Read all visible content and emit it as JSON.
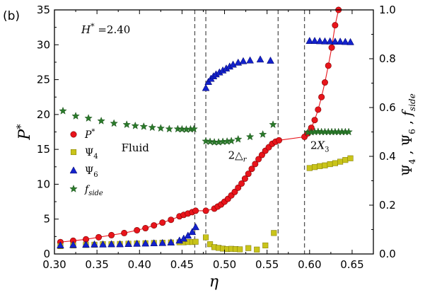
{
  "chart_data": {
    "type": "scatter",
    "panel_label": "(b)",
    "annotation": "H* =2.40",
    "xlabel": "η",
    "ylabel_left": "P*",
    "ylabel_right": "Ψ4 , Ψ6 , f_side",
    "xlim": [
      0.3,
      0.675
    ],
    "ylim_left": [
      0,
      35
    ],
    "ylim_right": [
      0,
      1.0
    ],
    "x_ticks": [
      "0.30",
      "0.35",
      "0.40",
      "0.45",
      "0.50",
      "0.55",
      "0.60",
      "0.65"
    ],
    "y_left_ticks": [
      "0",
      "5",
      "10",
      "15",
      "20",
      "25",
      "30",
      "35"
    ],
    "y_right_ticks": [
      "0.0",
      "0.2",
      "0.4",
      "0.6",
      "0.8",
      "1.0"
    ],
    "phase_boundaries": [
      0.465,
      0.478,
      0.563,
      0.594
    ],
    "region_labels": [
      {
        "text": "Fluid",
        "x": 0.395,
        "y_right": 0.42
      },
      {
        "text": "2△r",
        "x": 0.515,
        "y_right": 0.39
      },
      {
        "text": "2X3",
        "x": 0.612,
        "y_right": 0.43
      }
    ],
    "legend": [
      "P*",
      "Ψ4",
      "Ψ6",
      "f_side"
    ],
    "colors": {
      "P*": "#e8141b",
      "Ψ4": "#c9c41a",
      "Ψ6": "#1322cc",
      "f_side": "#2a7a2a",
      "line": "#e8141b",
      "boundary": "#555555"
    },
    "series": [
      {
        "name": "P*",
        "axis": "left",
        "marker": "circle",
        "x": [
          0.307,
          0.322,
          0.337,
          0.352,
          0.367,
          0.382,
          0.397,
          0.407,
          0.417,
          0.427,
          0.437,
          0.447,
          0.452,
          0.457,
          0.462,
          0.466,
          0.478,
          0.488,
          0.492,
          0.496,
          0.5,
          0.504,
          0.508,
          0.512,
          0.516,
          0.52,
          0.524,
          0.528,
          0.532,
          0.536,
          0.54,
          0.544,
          0.548,
          0.552,
          0.556,
          0.56,
          0.564,
          0.594,
          0.598,
          0.602,
          0.606,
          0.61,
          0.614,
          0.618,
          0.622,
          0.626,
          0.63,
          0.634
        ],
        "y": [
          1.7,
          1.9,
          2.1,
          2.4,
          2.7,
          3.0,
          3.4,
          3.7,
          4.1,
          4.5,
          4.9,
          5.4,
          5.6,
          5.8,
          6.0,
          6.2,
          6.2,
          6.5,
          6.8,
          7.1,
          7.5,
          7.9,
          8.4,
          8.9,
          9.5,
          10.1,
          10.8,
          11.5,
          12.2,
          12.9,
          13.6,
          14.2,
          14.8,
          15.3,
          15.8,
          16.1,
          16.3,
          16.8,
          17.3,
          18.1,
          19.2,
          20.7,
          22.5,
          24.6,
          27.0,
          29.6,
          32.8,
          35.0
        ]
      },
      {
        "name": "Ψ4",
        "axis": "right",
        "marker": "square",
        "x": [
          0.307,
          0.322,
          0.337,
          0.347,
          0.357,
          0.367,
          0.377,
          0.387,
          0.397,
          0.407,
          0.417,
          0.427,
          0.437,
          0.447,
          0.452,
          0.457,
          0.462,
          0.466,
          0.478,
          0.483,
          0.488,
          0.493,
          0.498,
          0.503,
          0.508,
          0.513,
          0.518,
          0.528,
          0.538,
          0.548,
          0.558,
          0.6,
          0.606,
          0.612,
          0.618,
          0.624,
          0.63,
          0.636,
          0.642,
          0.648
        ],
        "y": [
          0.032,
          0.035,
          0.037,
          0.038,
          0.04,
          0.04,
          0.041,
          0.042,
          0.043,
          0.044,
          0.045,
          0.046,
          0.047,
          0.048,
          0.048,
          0.049,
          0.049,
          0.05,
          0.068,
          0.04,
          0.028,
          0.025,
          0.022,
          0.02,
          0.021,
          0.02,
          0.019,
          0.024,
          0.018,
          0.035,
          0.086,
          0.352,
          0.356,
          0.36,
          0.363,
          0.368,
          0.372,
          0.378,
          0.385,
          0.392
        ]
      },
      {
        "name": "Ψ6",
        "axis": "right",
        "marker": "triangle",
        "x": [
          0.307,
          0.322,
          0.337,
          0.347,
          0.357,
          0.367,
          0.377,
          0.387,
          0.397,
          0.407,
          0.417,
          0.427,
          0.437,
          0.447,
          0.452,
          0.457,
          0.462,
          0.466,
          0.478,
          0.481,
          0.484,
          0.487,
          0.49,
          0.494,
          0.498,
          0.502,
          0.506,
          0.51,
          0.516,
          0.522,
          0.53,
          0.542,
          0.554,
          0.6,
          0.606,
          0.612,
          0.618,
          0.624,
          0.63,
          0.636,
          0.642,
          0.648
        ],
        "y": [
          0.035,
          0.037,
          0.038,
          0.039,
          0.039,
          0.04,
          0.04,
          0.041,
          0.042,
          0.043,
          0.044,
          0.045,
          0.047,
          0.055,
          0.063,
          0.075,
          0.09,
          0.11,
          0.68,
          0.705,
          0.718,
          0.728,
          0.736,
          0.744,
          0.752,
          0.76,
          0.768,
          0.776,
          0.784,
          0.79,
          0.793,
          0.797,
          0.792,
          0.873,
          0.873,
          0.872,
          0.871,
          0.871,
          0.87,
          0.87,
          0.869,
          0.868
        ]
      },
      {
        "name": "f_side",
        "axis": "right",
        "marker": "star",
        "x": [
          0.31,
          0.325,
          0.34,
          0.355,
          0.37,
          0.385,
          0.395,
          0.405,
          0.415,
          0.425,
          0.435,
          0.445,
          0.45,
          0.455,
          0.46,
          0.464,
          0.478,
          0.483,
          0.488,
          0.493,
          0.498,
          0.503,
          0.508,
          0.516,
          0.53,
          0.545,
          0.557,
          0.598,
          0.602,
          0.606,
          0.61,
          0.614,
          0.618,
          0.622,
          0.626,
          0.63,
          0.634,
          0.638,
          0.642,
          0.646
        ],
        "y": [
          0.586,
          0.565,
          0.556,
          0.545,
          0.535,
          0.53,
          0.525,
          0.522,
          0.518,
          0.515,
          0.512,
          0.512,
          0.511,
          0.51,
          0.511,
          0.512,
          0.462,
          0.46,
          0.458,
          0.458,
          0.46,
          0.461,
          0.463,
          0.47,
          0.48,
          0.49,
          0.53,
          0.498,
          0.499,
          0.5,
          0.501,
          0.5,
          0.5,
          0.5,
          0.5,
          0.5,
          0.5,
          0.5,
          0.5,
          0.5
        ]
      }
    ]
  }
}
